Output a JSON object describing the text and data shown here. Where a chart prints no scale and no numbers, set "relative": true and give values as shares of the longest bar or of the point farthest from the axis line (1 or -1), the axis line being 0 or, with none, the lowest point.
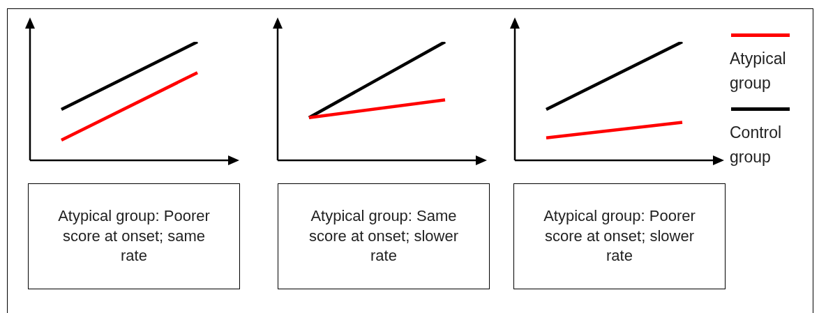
{
  "chart_data": [
    {
      "type": "line",
      "relative": true,
      "categories": [
        null,
        null
      ],
      "marker": "none",
      "legend": false,
      "annotations": [
        "Atypical group: Poorer score at onset; same rate"
      ],
      "series": [
        {
          "color": "#000000",
          "values": [
            0.43,
            1.0
          ]
        },
        {
          "color": "#ff0000",
          "values": [
            0.17,
            0.74
          ]
        }
      ]
    },
    {
      "type": "line",
      "relative": true,
      "categories": [
        null,
        null
      ],
      "marker": "none",
      "legend": false,
      "annotations": [
        "Atypical group: Same score at onset; slower rate"
      ],
      "series": [
        {
          "color": "#000000",
          "values": [
            0.36,
            1.0
          ]
        },
        {
          "color": "#ff0000",
          "values": [
            0.36,
            0.51
          ]
        }
      ]
    },
    {
      "type": "line",
      "relative": true,
      "categories": [
        null,
        null
      ],
      "marker": "none",
      "legend": "right",
      "annotations": [
        "Atypical group: Poorer score at onset; slower rate"
      ],
      "series": [
        {
          "name": "Control group",
          "color": "#000000",
          "values": [
            0.43,
            1.0
          ]
        },
        {
          "name": "Atypical group",
          "color": "#ff0000",
          "values": [
            0.19,
            0.32
          ]
        }
      ]
    }
  ]
}
